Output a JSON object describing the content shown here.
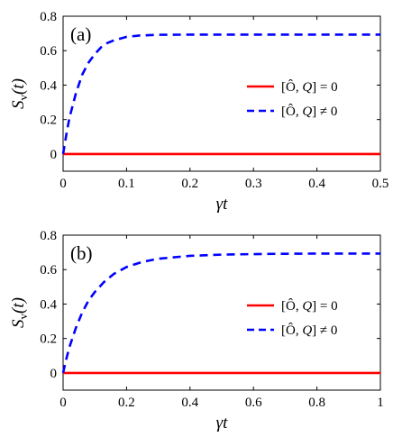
{
  "chart_data": [
    {
      "type": "line",
      "panel_label": "(a)",
      "xlabel": "γt",
      "ylabel": "S_v(t)",
      "xlim": [
        0,
        0.5
      ],
      "ylim": [
        -0.1,
        0.8
      ],
      "xticks": [
        0,
        0.1,
        0.2,
        0.3,
        0.4,
        0.5
      ],
      "yticks": [
        0,
        0.2,
        0.4,
        0.6,
        0.8
      ],
      "legend_position": "center-right",
      "series": [
        {
          "name": "[Ô, Q] = 0",
          "color": "#ff0000",
          "dash": "solid",
          "x": [
            0,
            0.1,
            0.2,
            0.3,
            0.4,
            0.5
          ],
          "y": [
            0,
            0,
            0,
            0,
            0,
            0
          ]
        },
        {
          "name": "[Ô, Q] ≠ 0",
          "color": "#0000ff",
          "dash": "dashed",
          "x": [
            0,
            0.005,
            0.01,
            0.02,
            0.03,
            0.04,
            0.05,
            0.06,
            0.07,
            0.08,
            0.1,
            0.12,
            0.15,
            0.2,
            0.25,
            0.3,
            0.4,
            0.5
          ],
          "y": [
            0,
            0.11,
            0.21,
            0.35,
            0.46,
            0.53,
            0.58,
            0.62,
            0.645,
            0.66,
            0.68,
            0.688,
            0.692,
            0.693,
            0.693,
            0.693,
            0.693,
            0.693
          ]
        }
      ]
    },
    {
      "type": "line",
      "panel_label": "(b)",
      "xlabel": "γt",
      "ylabel": "S_v(t)",
      "xlim": [
        0,
        1
      ],
      "ylim": [
        -0.1,
        0.8
      ],
      "xticks": [
        0,
        0.2,
        0.4,
        0.6,
        0.8,
        1
      ],
      "yticks": [
        0,
        0.2,
        0.4,
        0.6,
        0.8
      ],
      "legend_position": "center-right",
      "series": [
        {
          "name": "[Ô, Q] = 0",
          "color": "#ff0000",
          "dash": "solid",
          "x": [
            0,
            0.2,
            0.4,
            0.6,
            0.8,
            1
          ],
          "y": [
            0,
            0,
            0,
            0,
            0,
            0
          ]
        },
        {
          "name": "[Ô, Q] ≠ 0",
          "color": "#0000ff",
          "dash": "dashed",
          "x": [
            0,
            0.01,
            0.02,
            0.04,
            0.06,
            0.08,
            0.1,
            0.13,
            0.16,
            0.2,
            0.25,
            0.3,
            0.4,
            0.5,
            0.6,
            0.7,
            0.8,
            0.9,
            1
          ],
          "y": [
            0,
            0.08,
            0.15,
            0.26,
            0.35,
            0.42,
            0.47,
            0.53,
            0.575,
            0.615,
            0.645,
            0.663,
            0.68,
            0.687,
            0.69,
            0.692,
            0.693,
            0.693,
            0.693
          ]
        }
      ]
    }
  ]
}
